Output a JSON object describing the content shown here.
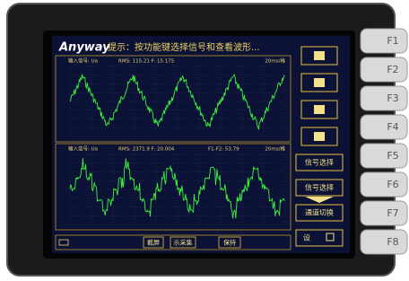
{
  "header": {
    "brand": "Anyway",
    "hint": "提示：按功能键选择信号和查看波形..."
  },
  "panels": [
    {
      "signal": "输入信号: Ua",
      "measure": "RMS: 115.21  F: 15.175",
      "extra": "",
      "timebase": "20ms/格"
    },
    {
      "signal": "输入信号: Ua",
      "measure": "RMS: 2371.9  F: 20.004",
      "extra": "F1-F2: 53.79",
      "timebase": "20ms/格"
    }
  ],
  "side_buttons": [
    "信号选择",
    "信号选择",
    "通道切换",
    "设"
  ],
  "bottom_bar": [
    "截屏",
    "示采集",
    "保持"
  ],
  "function_keys": [
    "F1",
    "F2",
    "F3",
    "F4",
    "F5",
    "F6",
    "F7",
    "F8"
  ]
}
